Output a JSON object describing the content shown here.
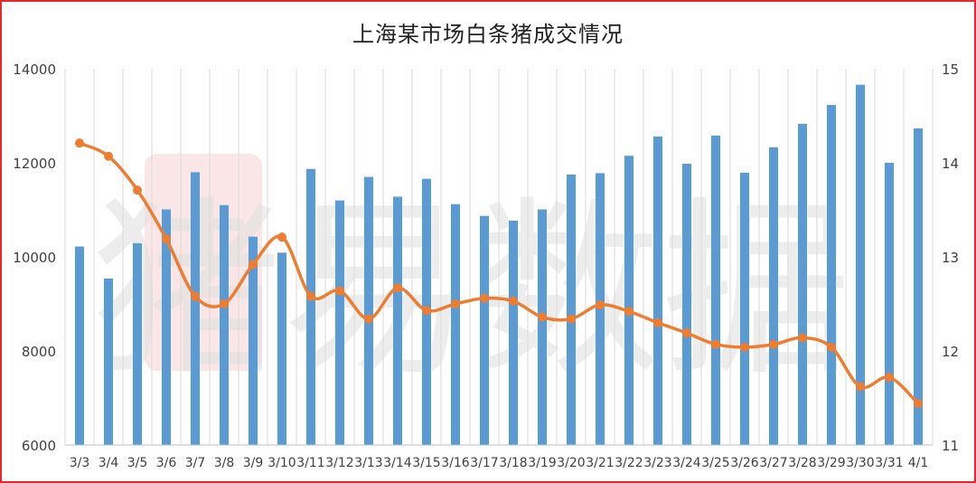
{
  "chart_data": {
    "type": "bar+line",
    "title": "上海某市场白条猪成交情况",
    "watermark": "猪易数据",
    "categories": [
      "3/3",
      "3/4",
      "3/5",
      "3/6",
      "3/7",
      "3/8",
      "3/9",
      "3/10",
      "3/11",
      "3/12",
      "3/13",
      "3/14",
      "3/15",
      "3/16",
      "3/17",
      "3/18",
      "3/19",
      "3/20",
      "3/21",
      "3/22",
      "3/23",
      "3/24",
      "3/25",
      "3/26",
      "3/27",
      "3/28",
      "3/29",
      "3/30",
      "3/31",
      "4/1"
    ],
    "bar_series": {
      "axis": "left",
      "color": "#5b9bd5",
      "values": [
        10220,
        9540,
        10290,
        11010,
        11800,
        11100,
        10430,
        10090,
        11870,
        11200,
        11700,
        11280,
        11660,
        11120,
        10870,
        10770,
        11010,
        11750,
        11780,
        12150,
        12560,
        11980,
        12580,
        11790,
        12330,
        12830,
        13230,
        13660,
        12000,
        12730
      ]
    },
    "line_series": {
      "axis": "right",
      "color": "#ed7d31",
      "values": [
        14.21,
        14.07,
        13.71,
        13.19,
        12.58,
        12.5,
        12.92,
        13.21,
        12.58,
        12.64,
        12.34,
        12.67,
        12.43,
        12.5,
        12.56,
        12.53,
        12.36,
        12.34,
        12.49,
        12.42,
        12.3,
        12.19,
        12.07,
        12.04,
        12.07,
        12.14,
        12.04,
        11.62,
        11.72,
        11.44
      ]
    },
    "y_left": {
      "min": 6000,
      "max": 14000,
      "ticks": [
        "6000",
        "8000",
        "10000",
        "12000",
        "14000"
      ]
    },
    "y_right": {
      "min": 11,
      "max": 15,
      "ticks": [
        "11",
        "12",
        "13",
        "14",
        "15"
      ]
    },
    "grid": "vertical",
    "legend": "none"
  }
}
